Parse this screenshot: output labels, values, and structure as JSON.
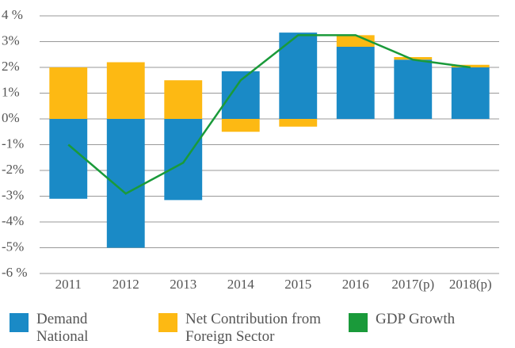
{
  "chart_data": {
    "type": "bar",
    "categories": [
      "2011",
      "2012",
      "2013",
      "2014",
      "2015",
      "2016",
      "2017(p)",
      "2018(p)"
    ],
    "series": [
      {
        "name": "Demand National",
        "type": "bar",
        "color": "#1a8ac6",
        "values": [
          -3.1,
          -5.0,
          -3.15,
          1.85,
          3.35,
          2.8,
          2.3,
          2.0
        ]
      },
      {
        "name": "Net Contribution from Foreign Sector",
        "type": "bar",
        "color": "#fdb913",
        "values": [
          2.0,
          2.2,
          1.5,
          -0.5,
          -0.3,
          0.45,
          0.1,
          0.1
        ]
      },
      {
        "name": "GDP Growth",
        "type": "line",
        "color": "#1a9a3a",
        "values": [
          -1.0,
          -2.9,
          -1.7,
          1.5,
          3.25,
          3.25,
          2.3,
          2.0
        ]
      }
    ],
    "ylim": [
      -6,
      4
    ],
    "yticks": [
      {
        "value": 4,
        "label": "4 %"
      },
      {
        "value": 3,
        "label": "3%"
      },
      {
        "value": 2,
        "label": "2%"
      },
      {
        "value": 1,
        "label": "1%"
      },
      {
        "value": 0,
        "label": "0%"
      },
      {
        "value": -1,
        "label": "-1%"
      },
      {
        "value": -2,
        "label": "-2%"
      },
      {
        "value": -3,
        "label": "-3%"
      },
      {
        "value": -4,
        "label": "-4%"
      },
      {
        "value": -5,
        "label": "-5%"
      },
      {
        "value": -6,
        "label": "-6 %"
      }
    ],
    "grid": true
  }
}
